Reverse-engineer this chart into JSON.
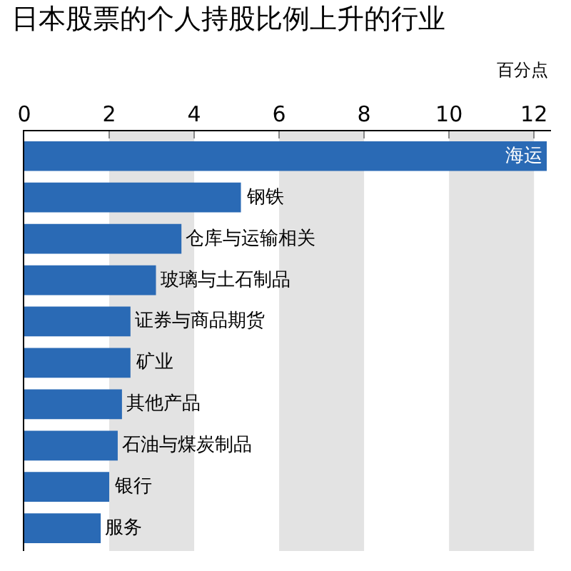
{
  "chart_data": {
    "type": "bar",
    "orientation": "horizontal",
    "title": "日本股票的个人持股比例上升的行业",
    "xlabel": "百分点",
    "categories": [
      "海运",
      "钢铁",
      "仓库与运输相关",
      "玻璃与土石制品",
      "证券与商品期货",
      "矿业",
      "其他产品",
      "石油与煤炭制品",
      "银行",
      "服务"
    ],
    "values": [
      12.3,
      5.1,
      3.7,
      3.1,
      2.5,
      2.5,
      2.3,
      2.2,
      2.0,
      1.8
    ],
    "color": "#2a6ab5",
    "xlim": [
      0,
      12.4
    ],
    "xticks": [
      0,
      2,
      4,
      6,
      8,
      10,
      12
    ],
    "bands": [
      {
        "axis": "x",
        "from": 2,
        "to": 4,
        "color": "#e3e3e3"
      },
      {
        "axis": "x",
        "from": 6,
        "to": 8,
        "color": "#e3e3e3"
      },
      {
        "axis": "x",
        "from": 10,
        "to": 12,
        "color": "#e3e3e3"
      }
    ],
    "grid": false,
    "legend": false,
    "tick_labels": "x"
  }
}
